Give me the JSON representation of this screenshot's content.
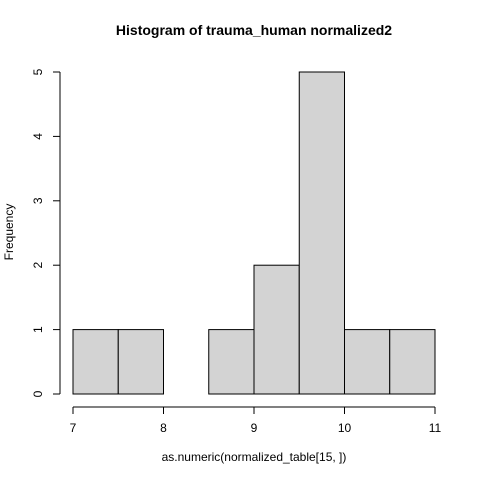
{
  "chart_data": {
    "type": "bar",
    "title": "Histogram of  trauma_human normalized2",
    "xlabel": "as.numeric(normalized_table[15, ])",
    "ylabel": "Frequency",
    "bins": [
      {
        "from": 7.0,
        "to": 7.5,
        "count": 1
      },
      {
        "from": 7.5,
        "to": 8.0,
        "count": 1
      },
      {
        "from": 8.0,
        "to": 8.5,
        "count": 0
      },
      {
        "from": 8.5,
        "to": 9.0,
        "count": 1
      },
      {
        "from": 9.0,
        "to": 9.5,
        "count": 2
      },
      {
        "from": 9.5,
        "to": 10.0,
        "count": 5
      },
      {
        "from": 10.0,
        "to": 10.5,
        "count": 1
      },
      {
        "from": 10.5,
        "to": 11.0,
        "count": 1
      }
    ],
    "xlim": [
      7,
      11
    ],
    "ylim": [
      0,
      5
    ],
    "xticks": [
      "7",
      "8",
      "9",
      "10",
      "11"
    ],
    "yticks": [
      "0",
      "1",
      "2",
      "3",
      "4",
      "5"
    ],
    "bar_color": "#d3d3d3",
    "grid": false
  }
}
